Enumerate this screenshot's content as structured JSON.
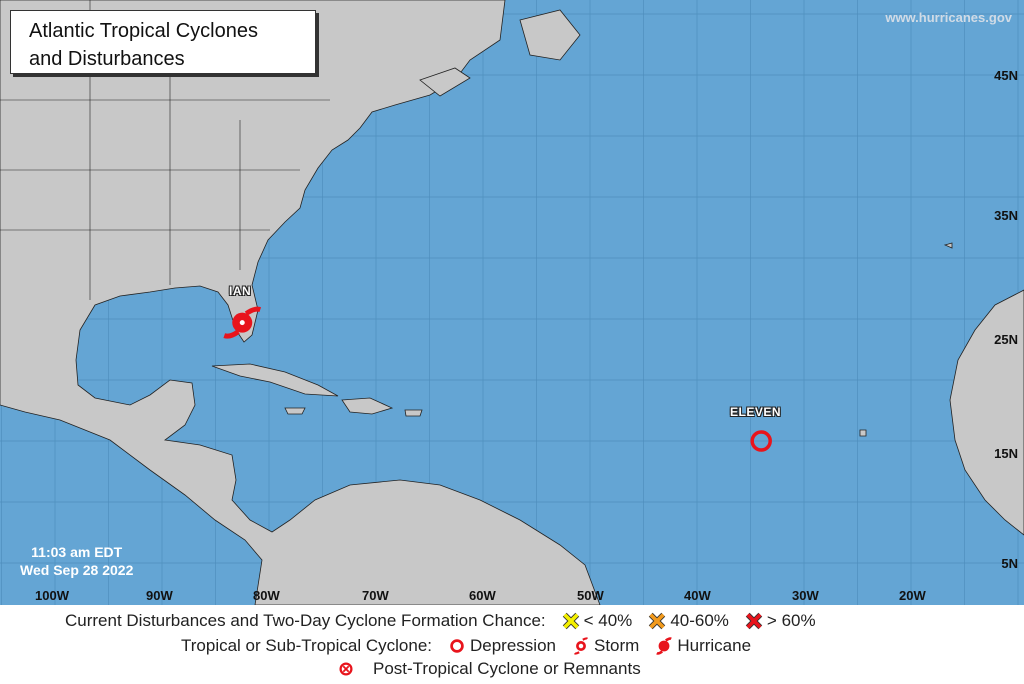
{
  "title": {
    "line1": "Atlantic Tropical Cyclones",
    "line2": "and Disturbances"
  },
  "credit": "www.hurricanes.gov",
  "timestamp": {
    "time": "11:03 am EDT",
    "date": "Wed Sep 28 2022"
  },
  "lat_labels": [
    "45N",
    "35N",
    "25N",
    "15N",
    "5N"
  ],
  "lon_labels": [
    "100W",
    "90W",
    "80W",
    "70W",
    "60W",
    "50W",
    "40W",
    "30W",
    "20W"
  ],
  "storms": [
    {
      "name": "IAN",
      "type": "hurricane",
      "lat": 24.7,
      "lon": -82.5,
      "color": "#e8141c"
    },
    {
      "name": "ELEVEN",
      "type": "depression",
      "lat": 15.0,
      "lon": -34.0,
      "color": "#e8141c"
    }
  ],
  "colors": {
    "ocean": "#64a5d4",
    "land": "#c8c8c8",
    "yellow": "#f4f000",
    "orange": "#f29a1c",
    "red": "#e8141c"
  },
  "legend": {
    "row1_label": "Current Disturbances and Two-Day Cyclone Formation Chance:",
    "low": "< 40%",
    "mid": "40-60%",
    "high": "> 60%",
    "row2_label": "Tropical or Sub-Tropical Cyclone:",
    "depression": "Depression",
    "storm": "Storm",
    "hurricane": "Hurricane",
    "post_tropical": "Post-Tropical Cyclone or Remnants"
  }
}
